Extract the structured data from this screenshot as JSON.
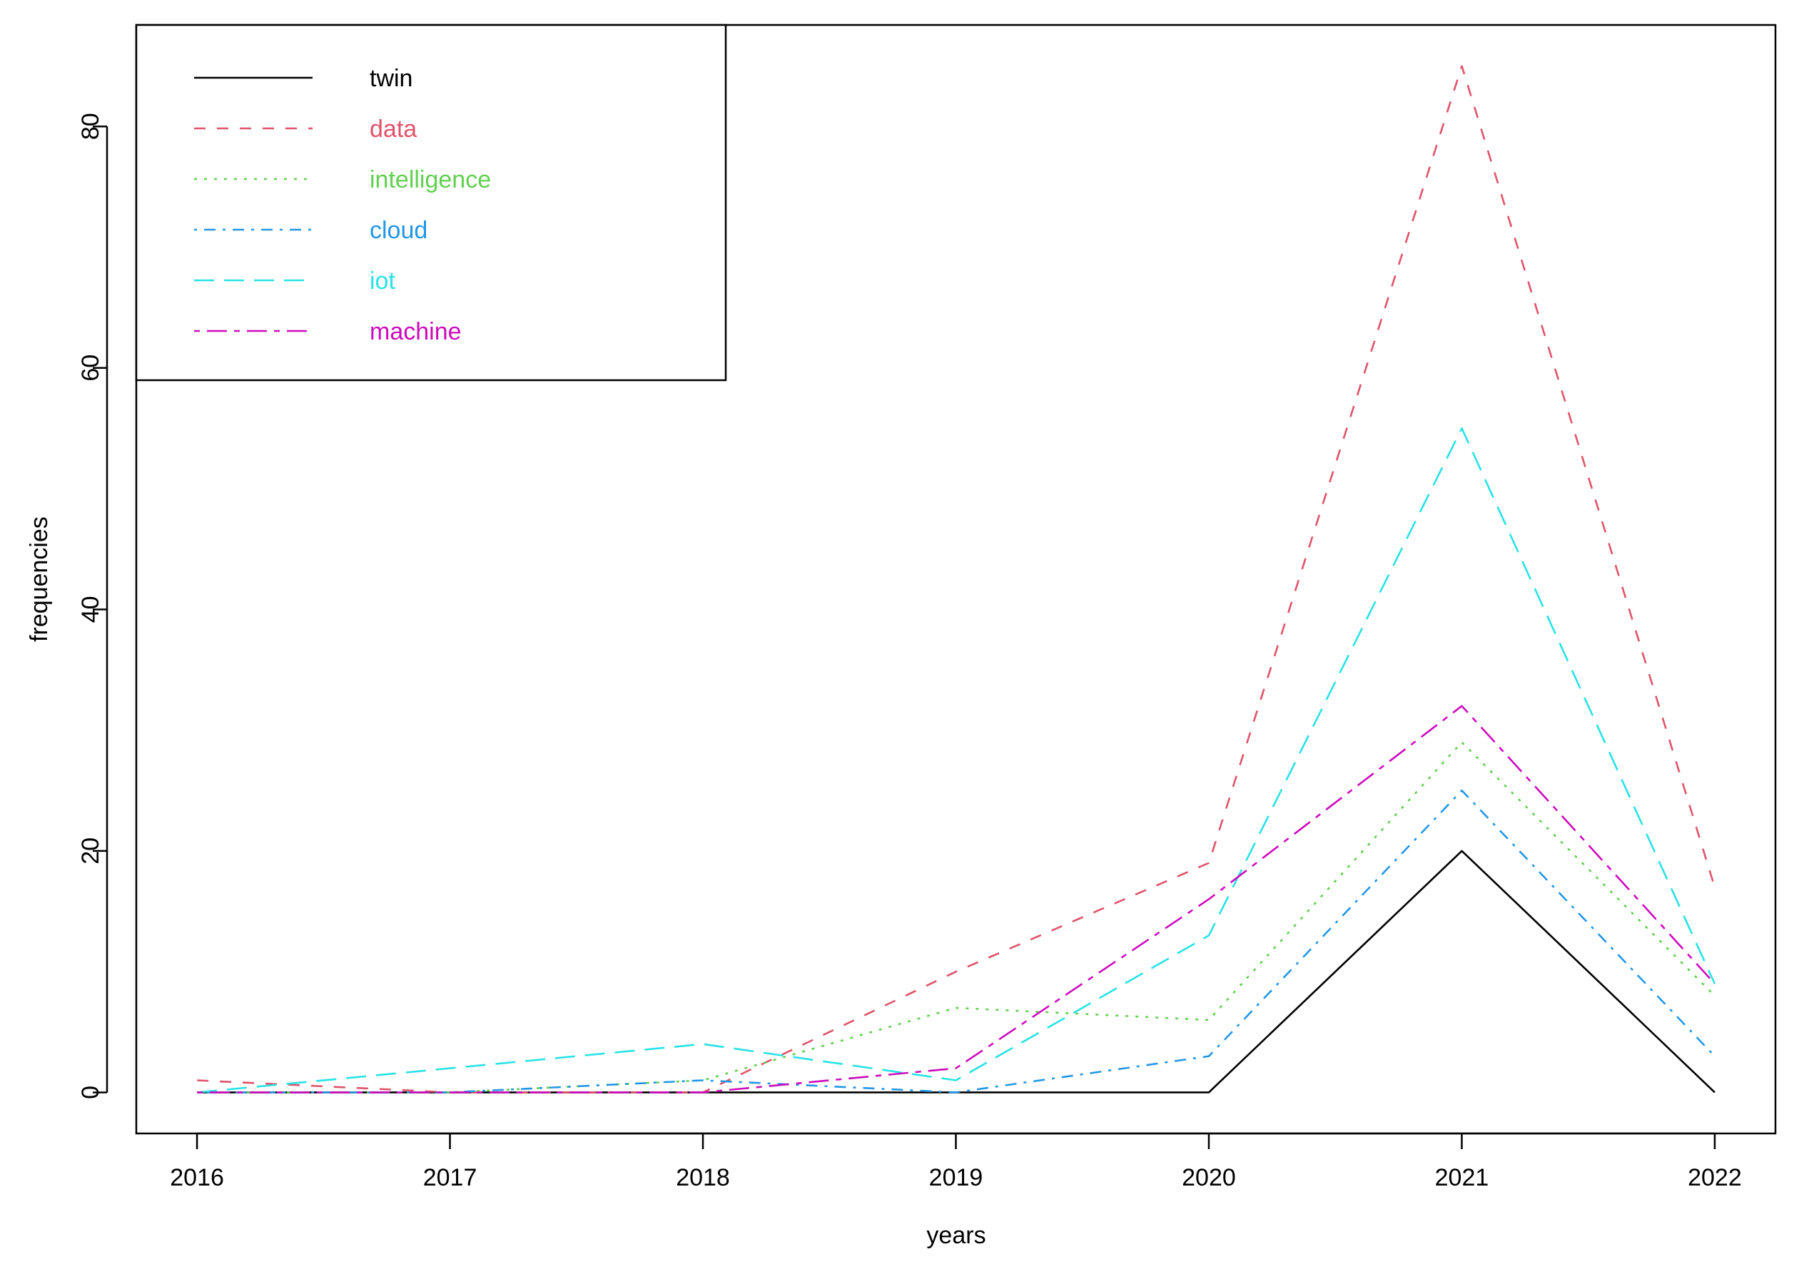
{
  "chart_data": {
    "type": "line",
    "title": "",
    "xlabel": "years",
    "ylabel": "frequencies",
    "x": [
      2016,
      2017,
      2018,
      2019,
      2020,
      2021,
      2022
    ],
    "xlim": [
      2015.76,
      2022.24
    ],
    "ylim": [
      -3.4,
      88.4
    ],
    "xticks": [
      "2016",
      "2017",
      "2018",
      "2019",
      "2020",
      "2021",
      "2022"
    ],
    "yticks": [
      "0",
      "20",
      "40",
      "60",
      "80"
    ],
    "grid": false,
    "legend_position": "top-left",
    "series": [
      {
        "name": "twin",
        "color": "#000000",
        "dash": "solid",
        "values": [
          0,
          0,
          0,
          0,
          0,
          20,
          0
        ]
      },
      {
        "name": "data",
        "color": "#DF536B",
        "dash": "dashed",
        "values": [
          1,
          0,
          0,
          10,
          19,
          85,
          17
        ]
      },
      {
        "name": "intelligence",
        "color": "#61D04F",
        "dash": "dotted",
        "values": [
          0,
          0,
          1,
          7,
          6,
          29,
          8
        ]
      },
      {
        "name": "cloud",
        "color": "#2297E6",
        "dash": "dotdash",
        "values": [
          0,
          0,
          1,
          0,
          3,
          25,
          3
        ]
      },
      {
        "name": "iot",
        "color": "#28E2E5",
        "dash": "longdash",
        "values": [
          0,
          2,
          4,
          1,
          13,
          55,
          9
        ]
      },
      {
        "name": "machine",
        "color": "#CD0BBC",
        "dash": "twodash",
        "values": [
          0,
          0,
          0,
          2,
          16,
          32,
          9
        ]
      }
    ]
  }
}
